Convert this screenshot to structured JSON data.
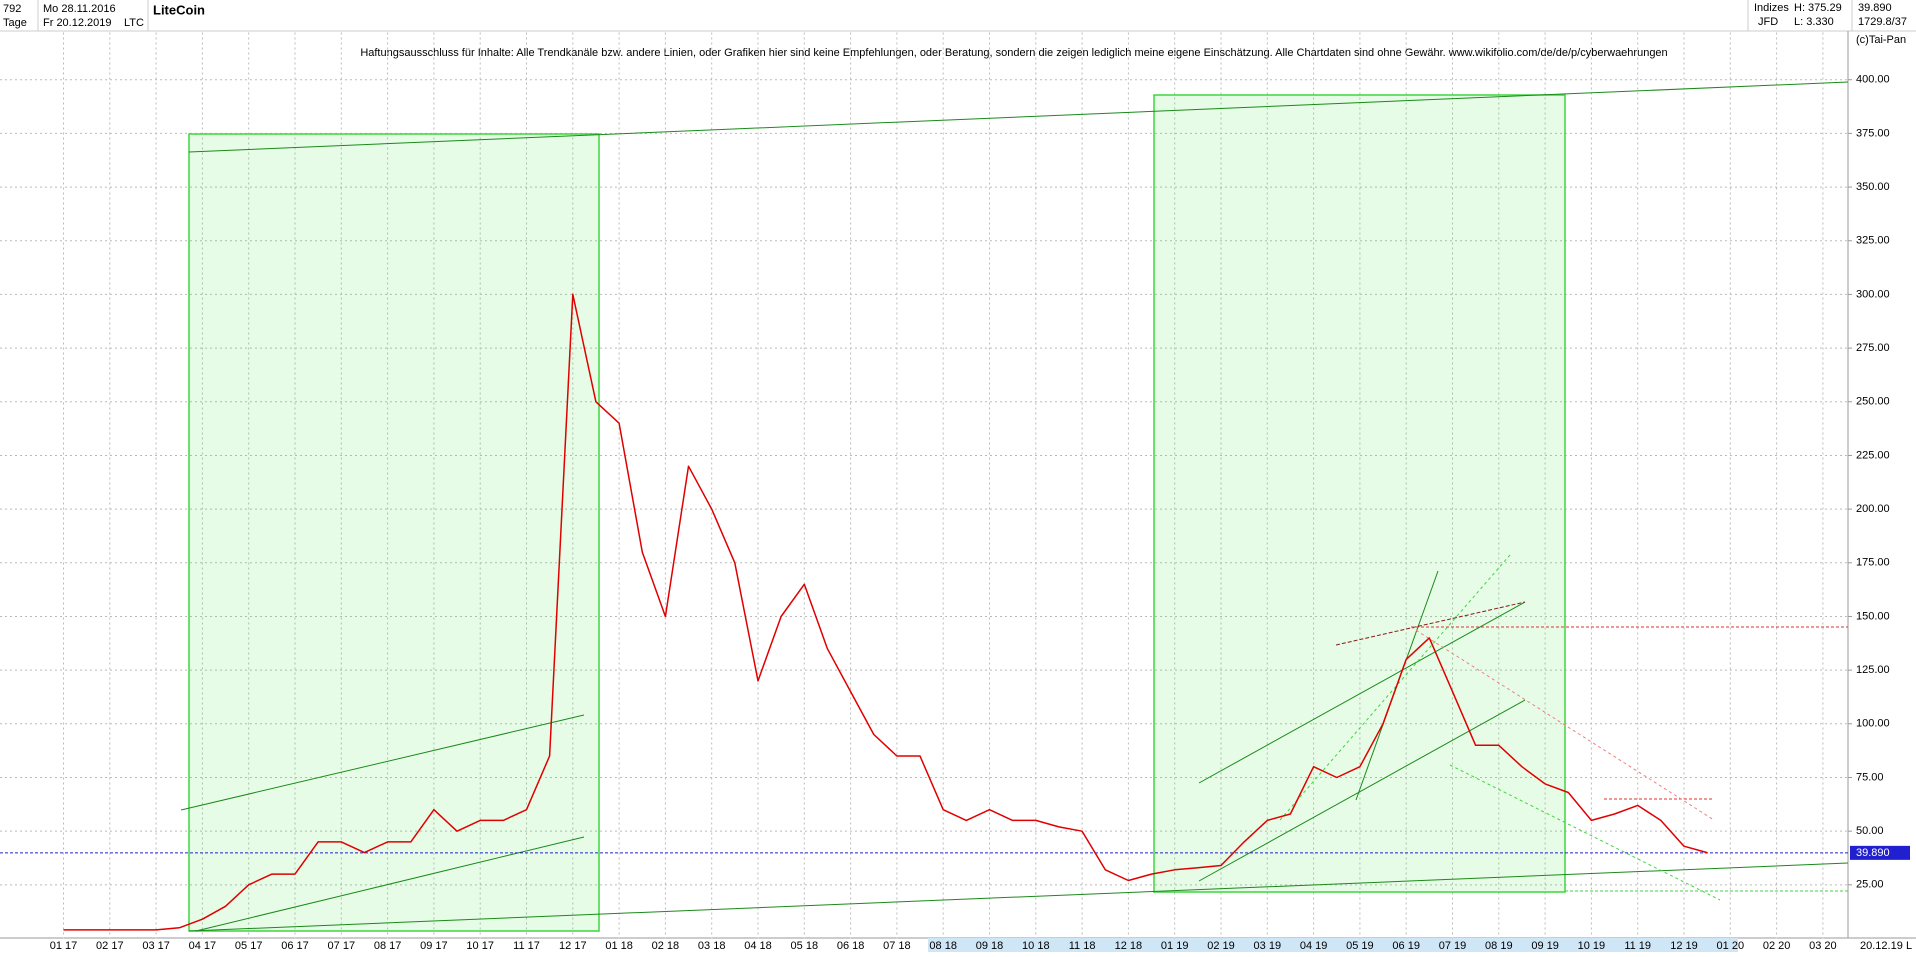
{
  "chart_data": {
    "type": "line",
    "title": "LiteCoin",
    "symbol": "LTC",
    "header": {
      "count": "792",
      "start_date": "Mo 28.11.2016",
      "period": "Tage",
      "end_date": "Fr 20.12.2019",
      "group": "Indizes",
      "source": "JFD",
      "high": "H: 375.29",
      "low": "L: 3.330",
      "last": "39.890",
      "volume": "1729.8/37",
      "copyright": "(c)Tai-Pan",
      "footer_date": "20.12.19",
      "footer_scale": "L"
    },
    "disclaimer": "Haftungsausschluss für Inhalte: Alle Trendkanäle bzw. andere Linien, oder Grafiken hier sind keine Empfehlungen, oder Beratung, sondern die zeigen lediglich meine eigene Einschätzung. Alle Chartdaten sind ohne Gewähr.  www.wikifolio.com/de/de/p/cyberwaehrungen",
    "categories": [
      "01 17",
      null,
      "02 17",
      null,
      "03 17",
      null,
      "04 17",
      null,
      "05 17",
      null,
      "06 17",
      null,
      "07 17",
      null,
      "08 17",
      null,
      "09 17",
      null,
      "10 17",
      null,
      "11 17",
      null,
      "12 17",
      null,
      "01 18",
      null,
      "02 18",
      null,
      "03 18",
      null,
      "04 18",
      null,
      "05 18",
      null,
      "06 18",
      null,
      "07 18",
      null,
      "08 18",
      null,
      "09 18",
      null,
      "10 18",
      null,
      "11 18",
      null,
      "12 18",
      null,
      "01 19",
      null,
      "02 19",
      null,
      "03 19",
      null,
      "04 19",
      null,
      "05 19",
      null,
      "06 19",
      null,
      "07 19",
      null,
      "08 19",
      null,
      "09 19",
      null,
      "10 19",
      null,
      "11 19",
      null,
      "12 19",
      null,
      "01 20",
      null,
      "02 20",
      null,
      "03 20",
      null
    ],
    "values": [
      4,
      4,
      4,
      4,
      4,
      5,
      9,
      15,
      25,
      30,
      30,
      45,
      45,
      40,
      45,
      45,
      60,
      50,
      55,
      55,
      60,
      85,
      300,
      250,
      240,
      180,
      150,
      220,
      200,
      175,
      120,
      150,
      165,
      135,
      115,
      95,
      85,
      85,
      60,
      55,
      60,
      55,
      55,
      52,
      50,
      32,
      27,
      30,
      32,
      33,
      34,
      45,
      55,
      58,
      80,
      75,
      80,
      100,
      130,
      140,
      115,
      90,
      90,
      80,
      72,
      68,
      55,
      58,
      62,
      55,
      43,
      40,
      null,
      null,
      null,
      null,
      null,
      null
    ],
    "color": "#e00000",
    "last_price": {
      "value": 39.89,
      "label": "39.890"
    },
    "ylim": [
      0,
      422
    ],
    "yticks": [
      {
        "value": 25,
        "label": "25.00"
      },
      {
        "value": 50,
        "label": "50.00"
      },
      {
        "value": 75,
        "label": "75.00"
      },
      {
        "value": 100,
        "label": "100.00"
      },
      {
        "value": 125,
        "label": "125.00"
      },
      {
        "value": 150,
        "label": "150.00"
      },
      {
        "value": 175,
        "label": "175.00"
      },
      {
        "value": 200,
        "label": "200.00"
      },
      {
        "value": 225,
        "label": "225.00"
      },
      {
        "value": 250,
        "label": "250.00"
      },
      {
        "value": 275,
        "label": "275.00"
      },
      {
        "value": 300,
        "label": "300.00"
      },
      {
        "value": 325,
        "label": "325.00"
      },
      {
        "value": 350,
        "label": "350.00"
      },
      {
        "value": 375,
        "label": "375.00"
      },
      {
        "value": 400,
        "label": "400.00"
      }
    ],
    "grid": true
  }
}
